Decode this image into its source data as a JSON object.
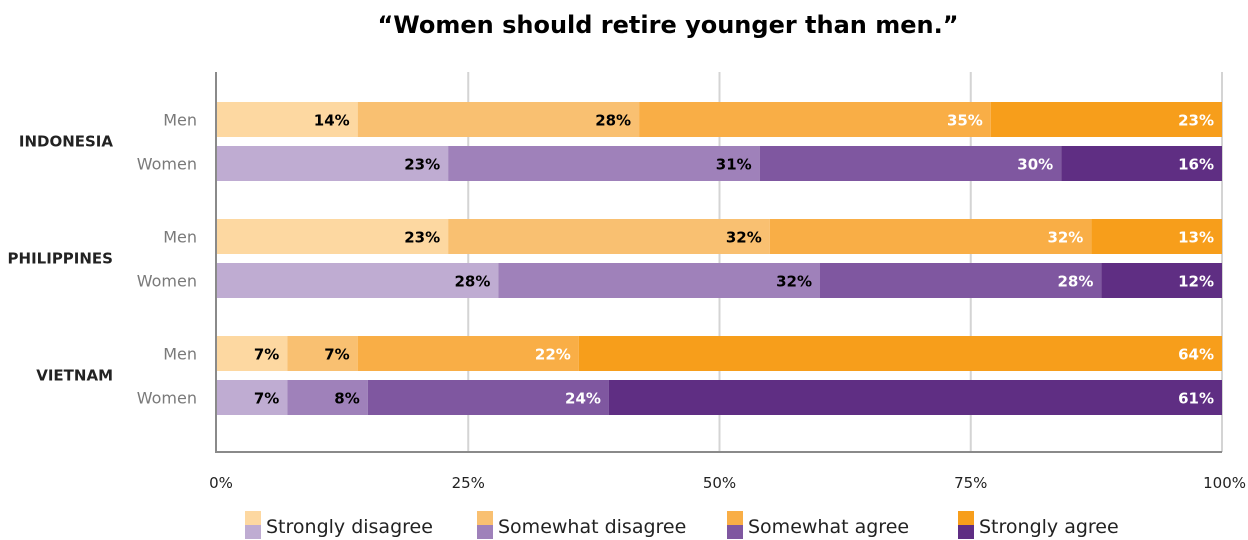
{
  "chart_data": {
    "type": "bar",
    "orientation": "horizontal",
    "stacked": true,
    "normalized": true,
    "title": "“Women should retire younger than men.”",
    "xlim": [
      0,
      100
    ],
    "x_ticks": [
      "0%",
      "25%",
      "50%",
      "75%",
      "100%"
    ],
    "x_tick_values": [
      0,
      25,
      50,
      75,
      100
    ],
    "grid": true,
    "legend_position": "bottom",
    "categories_legend": [
      "Strongly disagree",
      "Somewhat disagree",
      "Somewhat agree",
      "Strongly agree"
    ],
    "palettes": {
      "Men": [
        "#fdd8a1",
        "#f9c071",
        "#f9ae46",
        "#f79e1b"
      ],
      "Women": [
        "#bfacd2",
        "#9f81ba",
        "#7f57a0",
        "#5f2e83"
      ]
    },
    "label_colors": {
      "Men": [
        "#000000",
        "#000000",
        "#ffffff",
        "#ffffff"
      ],
      "Women": [
        "#000000",
        "#000000",
        "#ffffff",
        "#ffffff"
      ]
    },
    "groups": [
      {
        "country": "INDONESIA",
        "rows": [
          {
            "gender": "Men",
            "values": [
              14,
              28,
              35,
              23
            ],
            "labels": [
              "14%",
              "28%",
              "35%",
              "23%"
            ]
          },
          {
            "gender": "Women",
            "values": [
              23,
              31,
              30,
              16
            ],
            "labels": [
              "23%",
              "31%",
              "30%",
              "16%"
            ]
          }
        ]
      },
      {
        "country": "PHILIPPINES",
        "rows": [
          {
            "gender": "Men",
            "values": [
              23,
              32,
              32,
              13
            ],
            "labels": [
              "23%",
              "32%",
              "32%",
              "13%"
            ]
          },
          {
            "gender": "Women",
            "values": [
              28,
              32,
              28,
              12
            ],
            "labels": [
              "28%",
              "32%",
              "28%",
              "12%"
            ]
          }
        ]
      },
      {
        "country": "VIETNAM",
        "rows": [
          {
            "gender": "Men",
            "values": [
              7,
              7,
              22,
              64
            ],
            "labels": [
              "7%",
              "7%",
              "22%",
              "64%"
            ]
          },
          {
            "gender": "Women",
            "values": [
              7,
              8,
              24,
              61
            ],
            "labels": [
              "7%",
              "8%",
              "24%",
              "61%"
            ]
          }
        ]
      }
    ]
  }
}
